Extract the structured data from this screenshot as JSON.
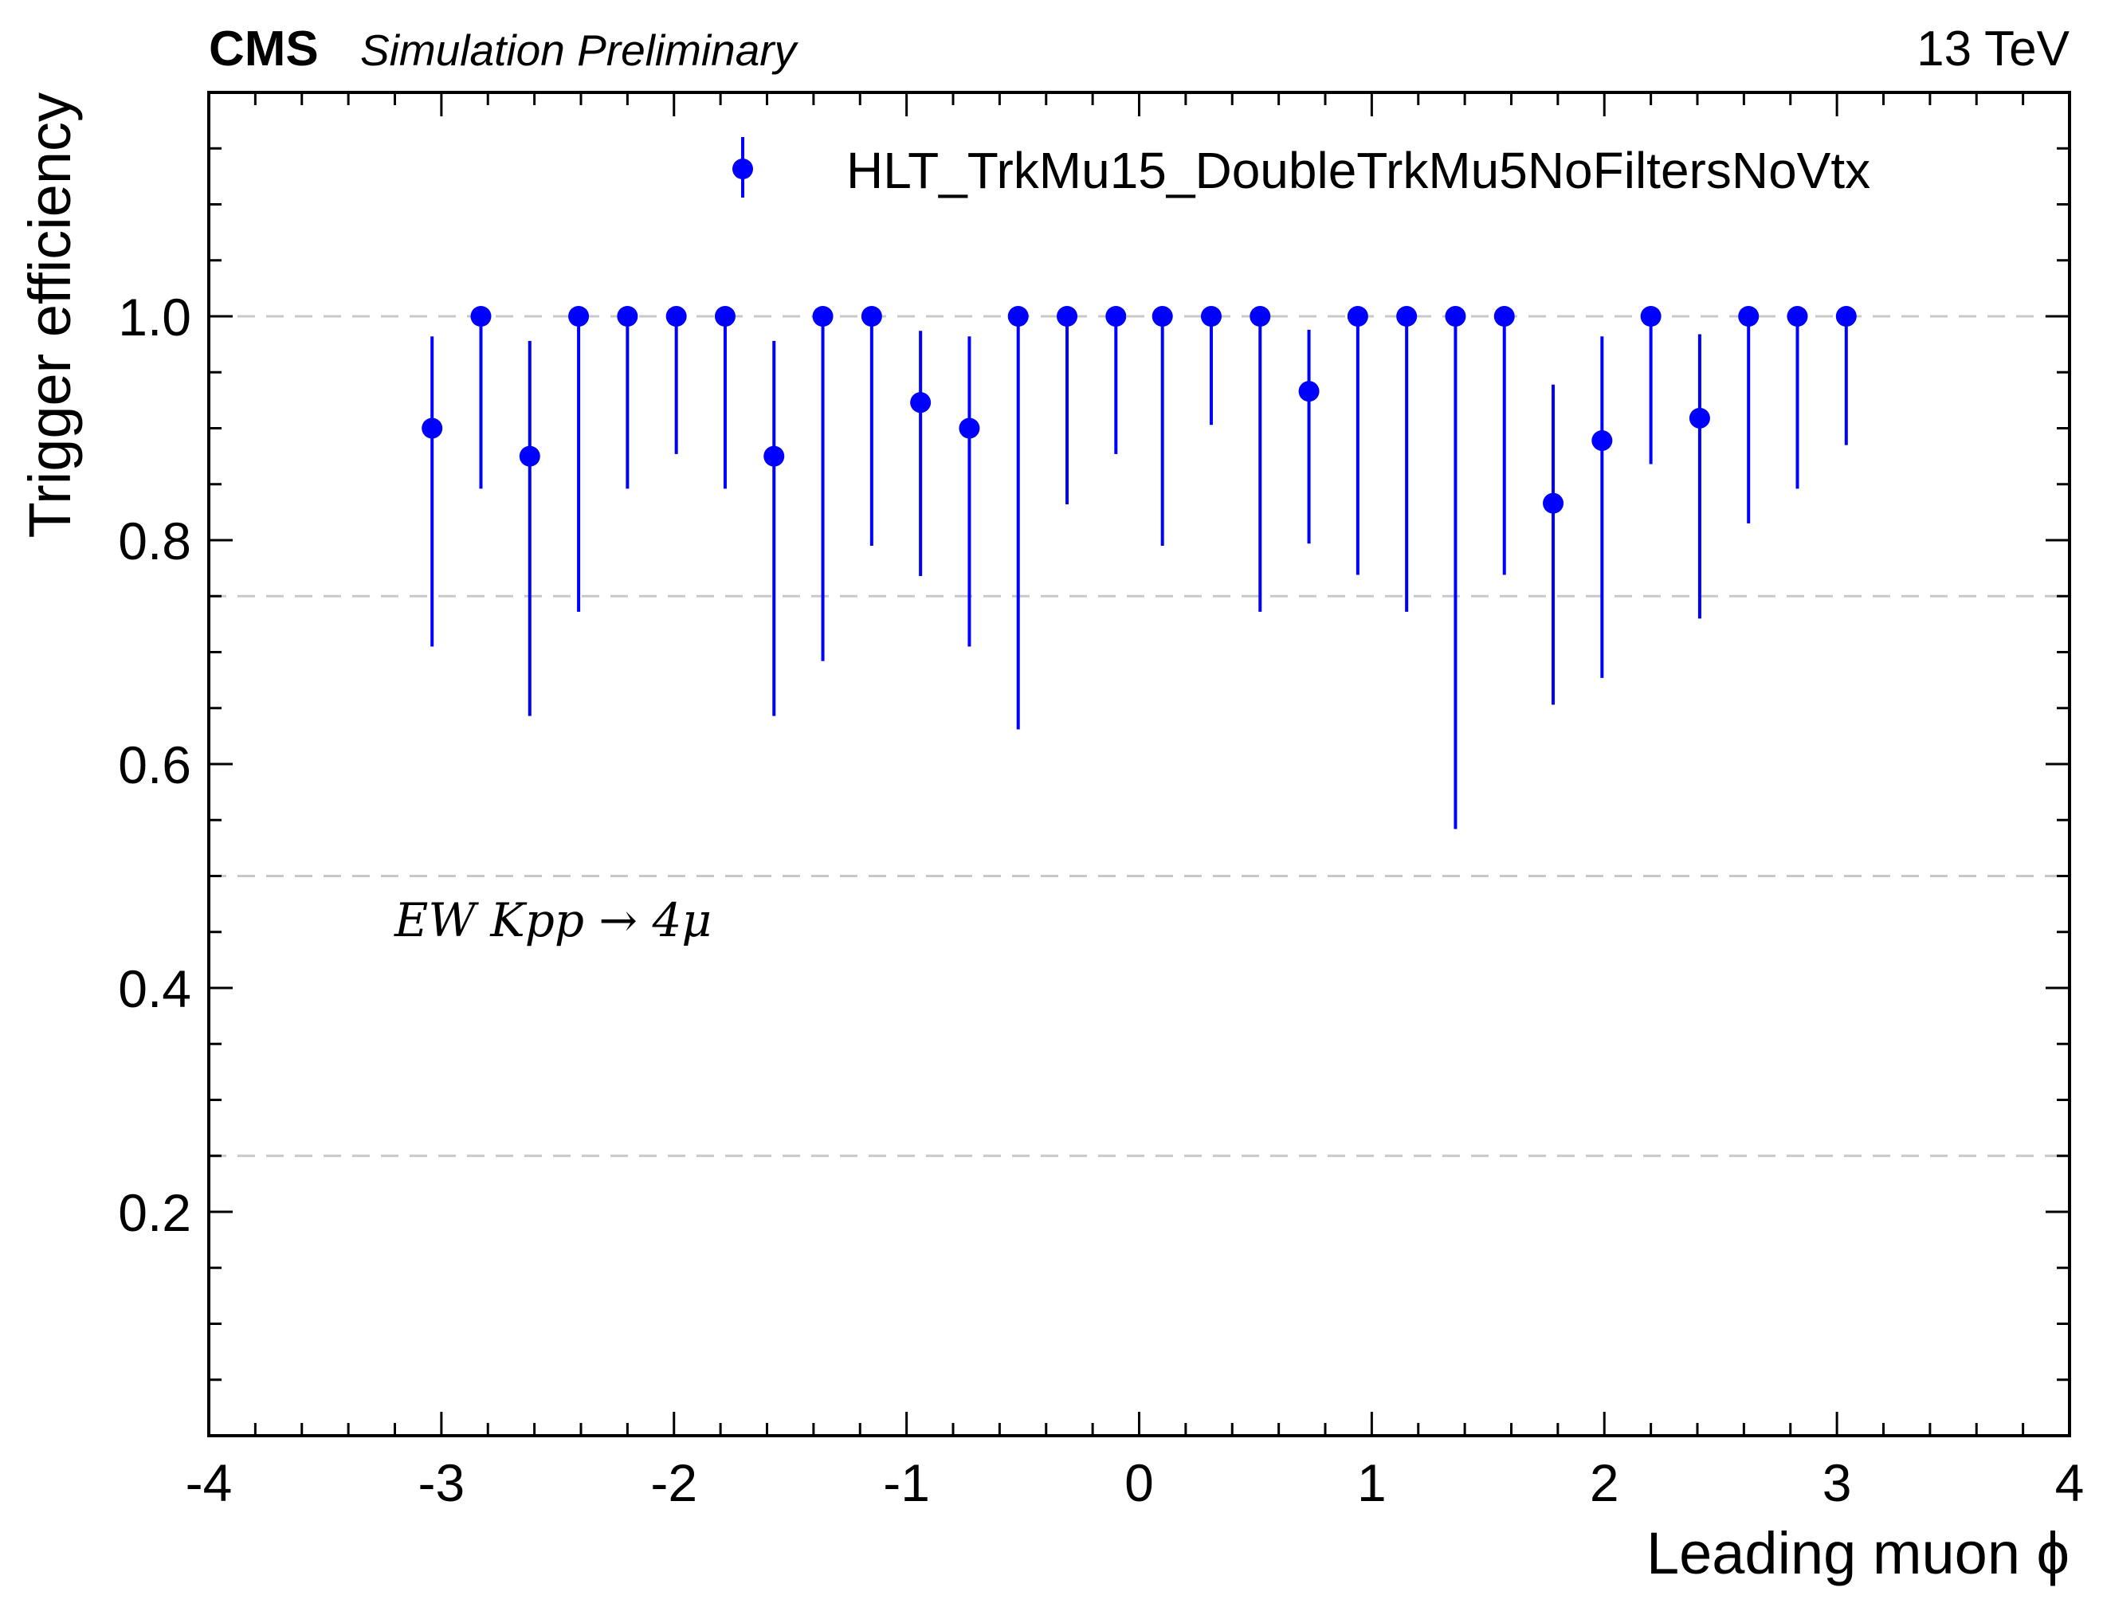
{
  "header": {
    "experiment": "CMS",
    "subtitle": "Simulation Preliminary",
    "energy": "13 TeV"
  },
  "annotation": "EW Kpp → 4μ",
  "colors": {
    "marker": "#0000ff",
    "grid": "#c8c8c8",
    "axis": "#000000"
  },
  "chart_data": {
    "type": "scatter",
    "xlabel": "Leading muon ϕ",
    "ylabel": "Trigger efficiency",
    "xlim": [
      -4,
      4
    ],
    "ylim": [
      0,
      1.2
    ],
    "x_ticks": [
      -4,
      -3,
      -2,
      -1,
      0,
      1,
      2,
      3,
      4
    ],
    "x_tick_labels": [
      "-4",
      "-3",
      "-2",
      "-1",
      "0",
      "1",
      "2",
      "3",
      "4"
    ],
    "y_ticks": [
      0.2,
      0.4,
      0.6,
      0.8,
      1.0
    ],
    "y_tick_labels": [
      "0.2",
      "0.4",
      "0.6",
      "0.8",
      "1.0"
    ],
    "grid_y": [
      0.25,
      0.5,
      0.75,
      1.0
    ],
    "legend_position": "top-right",
    "series": [
      {
        "name": "HLT_TrkMu15_DoubleTrkMu5NoFiltersNoVtx",
        "points": [
          {
            "x": -3.04,
            "y": 0.9,
            "yerr_low": 0.195,
            "yerr_high": 0.082
          },
          {
            "x": -2.83,
            "y": 1.0,
            "yerr_low": 0.154,
            "yerr_high": 0.0
          },
          {
            "x": -2.62,
            "y": 0.875,
            "yerr_low": 0.232,
            "yerr_high": 0.103
          },
          {
            "x": -2.41,
            "y": 1.0,
            "yerr_low": 0.264,
            "yerr_high": 0.0
          },
          {
            "x": -2.2,
            "y": 1.0,
            "yerr_low": 0.154,
            "yerr_high": 0.0
          },
          {
            "x": -1.99,
            "y": 1.0,
            "yerr_low": 0.123,
            "yerr_high": 0.0
          },
          {
            "x": -1.78,
            "y": 1.0,
            "yerr_low": 0.154,
            "yerr_high": 0.0
          },
          {
            "x": -1.57,
            "y": 0.875,
            "yerr_low": 0.232,
            "yerr_high": 0.103
          },
          {
            "x": -1.36,
            "y": 1.0,
            "yerr_low": 0.308,
            "yerr_high": 0.0
          },
          {
            "x": -1.15,
            "y": 1.0,
            "yerr_low": 0.205,
            "yerr_high": 0.0
          },
          {
            "x": -0.94,
            "y": 0.923,
            "yerr_low": 0.155,
            "yerr_high": 0.064
          },
          {
            "x": -0.73,
            "y": 0.9,
            "yerr_low": 0.195,
            "yerr_high": 0.082
          },
          {
            "x": -0.52,
            "y": 1.0,
            "yerr_low": 0.369,
            "yerr_high": 0.0
          },
          {
            "x": -0.31,
            "y": 1.0,
            "yerr_low": 0.168,
            "yerr_high": 0.0
          },
          {
            "x": -0.1,
            "y": 1.0,
            "yerr_low": 0.123,
            "yerr_high": 0.0
          },
          {
            "x": 0.1,
            "y": 1.0,
            "yerr_low": 0.205,
            "yerr_high": 0.0
          },
          {
            "x": 0.31,
            "y": 1.0,
            "yerr_low": 0.097,
            "yerr_high": 0.0
          },
          {
            "x": 0.52,
            "y": 1.0,
            "yerr_low": 0.264,
            "yerr_high": 0.0
          },
          {
            "x": 0.73,
            "y": 0.933,
            "yerr_low": 0.136,
            "yerr_high": 0.055
          },
          {
            "x": 0.94,
            "y": 1.0,
            "yerr_low": 0.231,
            "yerr_high": 0.0
          },
          {
            "x": 1.15,
            "y": 1.0,
            "yerr_low": 0.264,
            "yerr_high": 0.0
          },
          {
            "x": 1.36,
            "y": 1.0,
            "yerr_low": 0.458,
            "yerr_high": 0.0
          },
          {
            "x": 1.57,
            "y": 1.0,
            "yerr_low": 0.231,
            "yerr_high": 0.0
          },
          {
            "x": 1.78,
            "y": 0.833,
            "yerr_low": 0.18,
            "yerr_high": 0.106
          },
          {
            "x": 1.99,
            "y": 0.889,
            "yerr_low": 0.212,
            "yerr_high": 0.093
          },
          {
            "x": 2.2,
            "y": 1.0,
            "yerr_low": 0.132,
            "yerr_high": 0.0
          },
          {
            "x": 2.41,
            "y": 0.909,
            "yerr_low": 0.179,
            "yerr_high": 0.075
          },
          {
            "x": 2.62,
            "y": 1.0,
            "yerr_low": 0.185,
            "yerr_high": 0.0
          },
          {
            "x": 2.83,
            "y": 1.0,
            "yerr_low": 0.154,
            "yerr_high": 0.0
          },
          {
            "x": 3.04,
            "y": 1.0,
            "yerr_low": 0.115,
            "yerr_high": 0.0
          }
        ]
      }
    ]
  }
}
